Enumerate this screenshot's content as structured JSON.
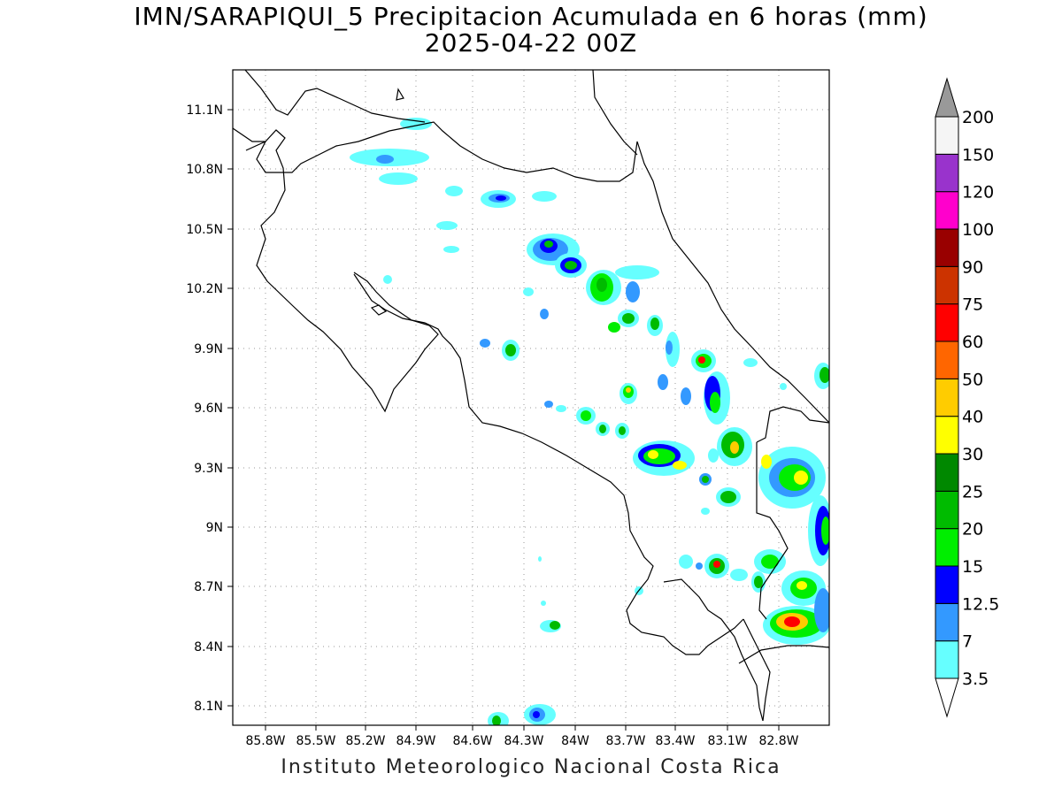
{
  "title": {
    "line1": "IMN/SARAPIQUI_5 Precipitacion Acumulada en 6 horas (mm)",
    "line2": "2025-04-22 00Z"
  },
  "footer": "Instituto Meteorologico Nacional Costa Rica",
  "axes": {
    "x_ticks": [
      "85.8W",
      "85.5W",
      "85.2W",
      "84.9W",
      "84.6W",
      "84.3W",
      "84W",
      "83.7W",
      "83.4W",
      "83.1W",
      "82.8W"
    ],
    "y_ticks": [
      "11.1N",
      "10.8N",
      "10.5N",
      "10.2N",
      "9.9N",
      "9.6N",
      "9.3N",
      "9N",
      "8.7N",
      "8.4N",
      "8.1N"
    ],
    "grid": "dotted"
  },
  "colorbar": {
    "unit": "mm",
    "levels": [
      "3.5",
      "7",
      "12.5",
      "15",
      "20",
      "25",
      "30",
      "40",
      "50",
      "60",
      "75",
      "90",
      "100",
      "120",
      "150",
      "200"
    ],
    "colors": [
      "#66ffff",
      "#3399ff",
      "#0000ff",
      "#00ee00",
      "#00bb00",
      "#008800",
      "#ffff00",
      "#ffcc00",
      "#ff6600",
      "#ff0000",
      "#cc3300",
      "#990000",
      "#ff00cc",
      "#9933cc",
      "#f5f5f5",
      "#999999"
    ]
  },
  "colors": {
    "light": "#66ffff",
    "medium": "#3399ff",
    "blue": "#0000ff",
    "green_light": "#00ee00",
    "green": "#00bb00",
    "green_dark": "#008800",
    "yellow": "#ffff00",
    "orange": "#ffcc00",
    "red": "#ff0000"
  }
}
